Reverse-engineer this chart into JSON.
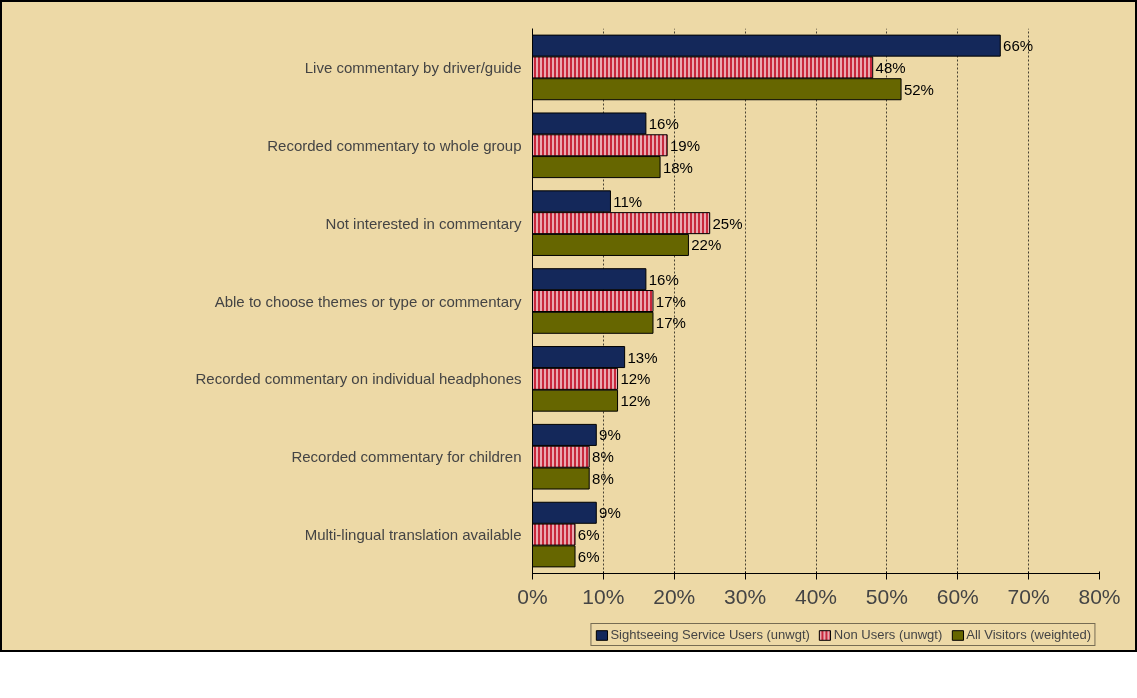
{
  "chart_data": {
    "type": "bar",
    "orientation": "horizontal",
    "categories": [
      "Live commentary by driver/guide",
      "Recorded commentary to whole group",
      "Not interested in commentary",
      "Able to choose themes or type or commentary",
      "Recorded commentary on individual headphones",
      "Recorded commentary for children",
      "Multi-lingual translation available"
    ],
    "series": [
      {
        "name": "Sightseeing Service Users (unwgt)",
        "color": "#14285a",
        "values": [
          66,
          16,
          11,
          16,
          13,
          9,
          9
        ],
        "value_labels": [
          "66%",
          "16%",
          "11%",
          "16%",
          "13%",
          "9%",
          "9%"
        ]
      },
      {
        "name": "Non Users (unwgt)",
        "color": "#c8283c",
        "values": [
          48,
          19,
          25,
          17,
          12,
          8,
          6
        ],
        "value_labels": [
          "48%",
          "19%",
          "25%",
          "17%",
          "12%",
          "8%",
          "6%"
        ]
      },
      {
        "name": "All Visitors (weighted)",
        "color": "#666600",
        "values": [
          52,
          18,
          22,
          17,
          12,
          8,
          6
        ],
        "value_labels": [
          "52%",
          "18%",
          "22%",
          "17%",
          "12%",
          "8%",
          "6%"
        ]
      }
    ],
    "xlim": [
      0,
      80
    ],
    "xticks": [
      {
        "value": 0,
        "label": "0%"
      },
      {
        "value": 10,
        "label": "10%"
      },
      {
        "value": 20,
        "label": "20%"
      },
      {
        "value": 30,
        "label": "30%"
      },
      {
        "value": 40,
        "label": "40%"
      },
      {
        "value": 50,
        "label": "50%"
      },
      {
        "value": 60,
        "label": "60%"
      },
      {
        "value": 70,
        "label": "70%"
      },
      {
        "value": 80,
        "label": "80%"
      }
    ],
    "grid": "x",
    "legend": "bottom"
  }
}
